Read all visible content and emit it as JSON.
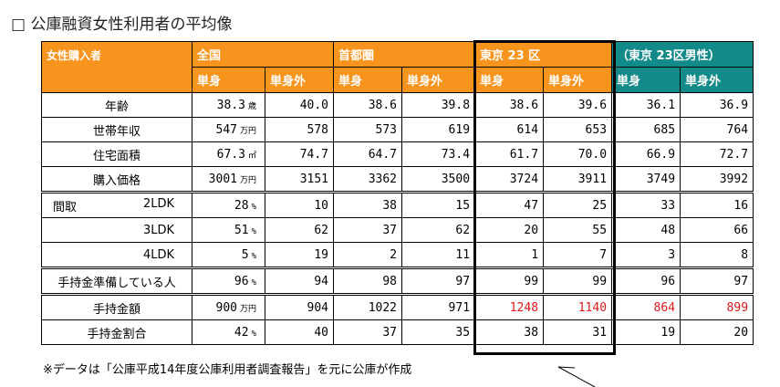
{
  "title": "□ 公庫融資女性利用者の平均像",
  "table": {
    "corner": "女性購入者",
    "groups": [
      "全国",
      "首都圏",
      "東京 23 区",
      "（東京 23区男性）"
    ],
    "subheaders": [
      "単身",
      "単身外",
      "単身",
      "単身外",
      "単身",
      "単身外",
      "単身",
      "単身外"
    ],
    "rows": [
      {
        "label": "年齢",
        "cells": [
          {
            "value": "38.3",
            "unit": "歳"
          },
          "40.0",
          "38.6",
          "39.8",
          "38.6",
          "39.6",
          "36.1",
          "36.9"
        ]
      },
      {
        "label": "世帯年収",
        "cells": [
          {
            "value": "547",
            "unit": "万円"
          },
          "578",
          "573",
          "619",
          "614",
          "653",
          "685",
          "764"
        ]
      },
      {
        "label": "住宅面積",
        "cells": [
          {
            "value": "67.3",
            "unit": "㎡"
          },
          "74.7",
          "64.7",
          "73.4",
          "61.7",
          "70.0",
          "66.9",
          "72.7"
        ]
      },
      {
        "label": "購入価格",
        "cells": [
          {
            "value": "3001",
            "unit": "万円"
          },
          "3151",
          "3362",
          "3500",
          "3724",
          "3911",
          "3749",
          "3992"
        ]
      },
      {
        "group": "間取",
        "label": "2LDK",
        "cells": [
          {
            "value": "28",
            "unit": "%"
          },
          "10",
          "38",
          "15",
          "47",
          "25",
          "33",
          "16"
        ]
      },
      {
        "label": "3LDK",
        "cells": [
          {
            "value": "51",
            "unit": "%"
          },
          "62",
          "37",
          "62",
          "20",
          "55",
          "48",
          "66"
        ]
      },
      {
        "label": "4LDK",
        "cells": [
          {
            "value": "5",
            "unit": "%"
          },
          "19",
          "2",
          "11",
          "1",
          "7",
          "3",
          "8"
        ]
      },
      {
        "label": "手持金準備している人",
        "cells": [
          {
            "value": "96",
            "unit": "%"
          },
          "94",
          "98",
          "97",
          "99",
          "99",
          "96",
          "97"
        ]
      },
      {
        "label": "手持金額",
        "cells": [
          {
            "value": "900",
            "unit": "万円"
          },
          "904",
          "1022",
          "971",
          "1248",
          "1140",
          "864",
          "899"
        ]
      },
      {
        "label": "手持金割合",
        "cells": [
          {
            "value": "42",
            "unit": "%"
          },
          "40",
          "37",
          "35",
          "38",
          "31",
          "19",
          "20"
        ]
      }
    ]
  },
  "note": "※データは「公庫平成14年度公庫利用者調査報告」を元に公庫が作成"
}
